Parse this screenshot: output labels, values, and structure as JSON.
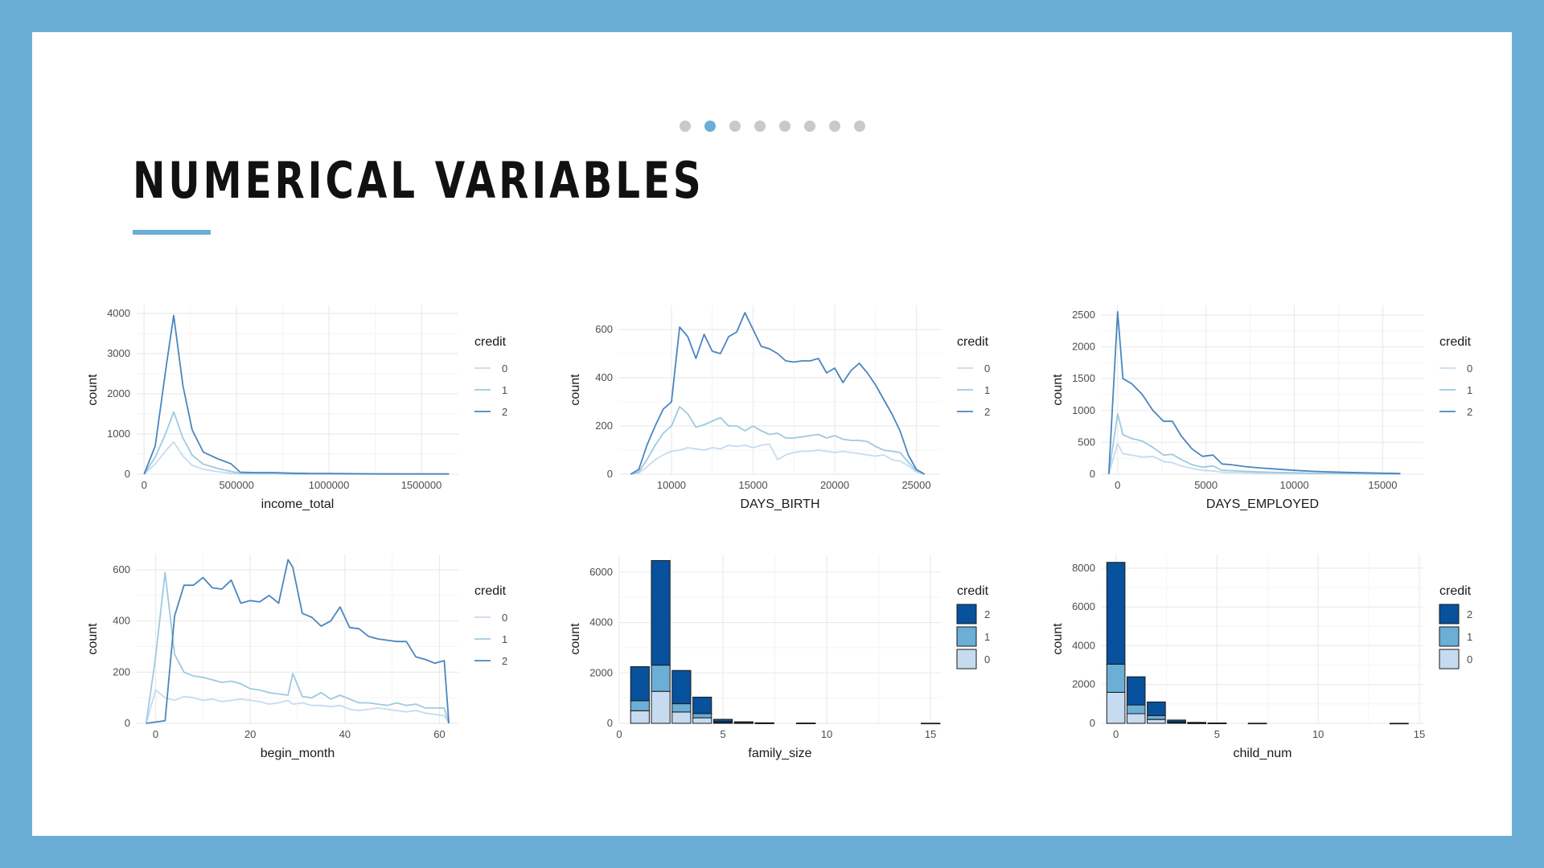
{
  "title": "NUMERICAL VARIABLES",
  "nav_dots": {
    "count": 8,
    "active_index": 1
  },
  "colors": {
    "background": "#6aaed6",
    "panel": "#ffffff",
    "accent": "#6aaed6",
    "dot_inactive": "#c9c9c9",
    "dot_active": "#6aaed6",
    "credit_0": "#c6dbef",
    "credit_1": "#6baed6",
    "credit_2": "#08519c",
    "line_0": "#c6dbef",
    "line_1": "#9ecae1",
    "line_2": "#4a86c0",
    "grid": "#ebebeb"
  },
  "chart_data": [
    {
      "type": "line",
      "xlabel": "income_total",
      "ylabel": "count",
      "xlim": [
        -40000,
        1700000
      ],
      "ylim": [
        0,
        4200
      ],
      "xticks": [
        0,
        500000,
        1000000,
        1500000
      ],
      "xtick_labels": [
        "0",
        "500000",
        "1000000",
        "1500000"
      ],
      "yticks": [
        0,
        1000,
        2000,
        3000,
        4000
      ],
      "ytick_labels": [
        "0",
        "1000",
        "2000",
        "3000",
        "4000"
      ],
      "grid": true,
      "legend": {
        "title": "credit",
        "position": "right",
        "entries": [
          "0",
          "1",
          "2"
        ]
      },
      "x": [
        0,
        60000,
        120000,
        160000,
        210000,
        260000,
        320000,
        400000,
        470000,
        520000,
        600000,
        700000,
        800000,
        900000,
        1000000,
        1200000,
        1400000,
        1650000
      ],
      "series": [
        {
          "name": "0",
          "values": [
            0,
            250,
            600,
            800,
            450,
            220,
            120,
            60,
            25,
            10,
            8,
            8,
            5,
            3,
            3,
            2,
            2,
            2
          ]
        },
        {
          "name": "1",
          "values": [
            0,
            420,
            1050,
            1550,
            900,
            470,
            250,
            140,
            70,
            25,
            20,
            20,
            12,
            8,
            8,
            5,
            5,
            5
          ]
        },
        {
          "name": "2",
          "values": [
            0,
            700,
            2700,
            3950,
            2200,
            1100,
            550,
            380,
            260,
            50,
            40,
            40,
            25,
            18,
            18,
            10,
            8,
            8
          ]
        }
      ]
    },
    {
      "type": "line",
      "xlabel": "DAYS_BIRTH",
      "ylabel": "count",
      "xlim": [
        6800,
        26500
      ],
      "ylim": [
        0,
        700
      ],
      "xticks": [
        10000,
        15000,
        20000,
        25000
      ],
      "xtick_labels": [
        "10000",
        "15000",
        "20000",
        "25000"
      ],
      "yticks": [
        0,
        200,
        400,
        600
      ],
      "ytick_labels": [
        "0",
        "200",
        "400",
        "600"
      ],
      "grid": true,
      "legend": {
        "title": "credit",
        "position": "right",
        "entries": [
          "0",
          "1",
          "2"
        ]
      },
      "x": [
        7500,
        8000,
        8500,
        9000,
        9500,
        10000,
        10500,
        11000,
        11500,
        12000,
        12500,
        13000,
        13500,
        14000,
        14500,
        15000,
        15500,
        16000,
        16500,
        17000,
        17500,
        18000,
        18500,
        19000,
        19500,
        20000,
        20500,
        21000,
        21500,
        22000,
        22500,
        23000,
        23500,
        24000,
        24500,
        25000,
        25500
      ],
      "series": [
        {
          "name": "0",
          "values": [
            0,
            5,
            30,
            60,
            80,
            95,
            100,
            110,
            105,
            100,
            110,
            105,
            120,
            115,
            120,
            110,
            120,
            125,
            60,
            80,
            90,
            95,
            95,
            100,
            95,
            90,
            95,
            90,
            85,
            80,
            75,
            80,
            60,
            55,
            35,
            10,
            0
          ]
        },
        {
          "name": "1",
          "values": [
            0,
            10,
            60,
            120,
            170,
            200,
            280,
            250,
            195,
            205,
            220,
            235,
            200,
            200,
            180,
            200,
            180,
            165,
            170,
            150,
            150,
            155,
            160,
            165,
            150,
            160,
            145,
            140,
            140,
            135,
            115,
            100,
            95,
            90,
            50,
            15,
            0
          ]
        },
        {
          "name": "2",
          "values": [
            0,
            20,
            120,
            200,
            270,
            300,
            610,
            570,
            480,
            580,
            510,
            500,
            570,
            590,
            670,
            600,
            530,
            520,
            500,
            470,
            465,
            470,
            470,
            480,
            420,
            440,
            380,
            430,
            460,
            420,
            370,
            310,
            250,
            180,
            80,
            20,
            0
          ]
        }
      ]
    },
    {
      "type": "line",
      "xlabel": "DAYS_EMPLOYED",
      "ylabel": "count",
      "xlim": [
        -900,
        17300
      ],
      "ylim": [
        0,
        2650
      ],
      "xticks": [
        0,
        5000,
        10000,
        15000
      ],
      "xtick_labels": [
        "0",
        "5000",
        "10000",
        "15000"
      ],
      "yticks": [
        0,
        500,
        1000,
        1500,
        2000,
        2500
      ],
      "ytick_labels": [
        "0",
        "500",
        "1000",
        "1500",
        "2000",
        "2500"
      ],
      "grid": true,
      "legend": {
        "title": "credit",
        "position": "right",
        "entries": [
          "0",
          "1",
          "2"
        ]
      },
      "x": [
        -500,
        0,
        300,
        800,
        1400,
        2000,
        2600,
        3100,
        3600,
        4200,
        4800,
        5400,
        5900,
        6400,
        7200,
        8000,
        9000,
        10000,
        11000,
        12000,
        13000,
        14000,
        15000,
        16000
      ],
      "series": [
        {
          "name": "0",
          "values": [
            0,
            480,
            320,
            300,
            270,
            280,
            200,
            180,
            130,
            90,
            60,
            50,
            30,
            25,
            20,
            15,
            12,
            10,
            8,
            6,
            5,
            4,
            3,
            2
          ]
        },
        {
          "name": "1",
          "values": [
            0,
            950,
            620,
            560,
            520,
            420,
            300,
            310,
            230,
            150,
            110,
            130,
            60,
            55,
            45,
            35,
            28,
            22,
            15,
            12,
            10,
            8,
            6,
            5
          ]
        },
        {
          "name": "2",
          "values": [
            0,
            2550,
            1500,
            1420,
            1250,
            1000,
            830,
            830,
            600,
            400,
            280,
            300,
            160,
            150,
            120,
            100,
            80,
            60,
            45,
            35,
            28,
            22,
            15,
            10
          ]
        }
      ]
    },
    {
      "type": "line",
      "xlabel": "begin_month",
      "ylabel": "count",
      "xlim": [
        -4,
        64
      ],
      "ylim": [
        0,
        660
      ],
      "xticks": [
        0,
        20,
        40,
        60
      ],
      "xtick_labels": [
        "0",
        "20",
        "40",
        "60"
      ],
      "yticks": [
        0,
        200,
        400,
        600
      ],
      "ytick_labels": [
        "0",
        "200",
        "400",
        "600"
      ],
      "grid": true,
      "legend": {
        "title": "credit",
        "position": "right",
        "entries": [
          "0",
          "1",
          "2"
        ]
      },
      "x": [
        -2,
        0,
        2,
        4,
        6,
        8,
        10,
        12,
        14,
        16,
        18,
        20,
        22,
        24,
        26,
        28,
        29,
        31,
        33,
        35,
        37,
        39,
        41,
        43,
        45,
        47,
        49,
        51,
        53,
        55,
        57,
        59,
        61,
        62
      ],
      "series": [
        {
          "name": "0",
          "values": [
            0,
            130,
            100,
            90,
            105,
            100,
            90,
            95,
            85,
            90,
            95,
            90,
            85,
            75,
            80,
            90,
            75,
            80,
            70,
            70,
            65,
            70,
            55,
            50,
            55,
            60,
            55,
            50,
            45,
            50,
            40,
            35,
            30,
            0
          ]
        },
        {
          "name": "1",
          "values": [
            0,
            260,
            590,
            270,
            200,
            185,
            180,
            170,
            160,
            165,
            155,
            135,
            130,
            120,
            115,
            110,
            195,
            105,
            100,
            120,
            95,
            110,
            95,
            80,
            80,
            75,
            70,
            80,
            70,
            75,
            60,
            60,
            60,
            0
          ]
        },
        {
          "name": "2",
          "values": [
            0,
            5,
            10,
            420,
            540,
            540,
            570,
            530,
            525,
            560,
            470,
            480,
            475,
            500,
            470,
            640,
            610,
            430,
            415,
            380,
            400,
            455,
            375,
            370,
            340,
            330,
            325,
            320,
            320,
            260,
            250,
            235,
            245,
            0
          ]
        }
      ]
    },
    {
      "type": "bar",
      "stacked": true,
      "xlabel": "family_size",
      "ylabel": "count",
      "xlim": [
        0,
        15.5
      ],
      "ylim": [
        0,
        6700
      ],
      "xticks": [
        0,
        5,
        10,
        15
      ],
      "xtick_labels": [
        "0",
        "5",
        "10",
        "15"
      ],
      "yticks": [
        0,
        2000,
        4000,
        6000
      ],
      "ytick_labels": [
        "0",
        "2000",
        "4000",
        "6000"
      ],
      "grid": true,
      "legend": {
        "title": "credit",
        "position": "right",
        "entries": [
          "2",
          "1",
          "0"
        ]
      },
      "x": [
        1,
        2,
        3,
        4,
        5,
        6,
        7,
        9,
        15
      ],
      "series": [
        {
          "name": "0",
          "values": [
            500,
            1270,
            450,
            220,
            35,
            15,
            5,
            3,
            1
          ]
        },
        {
          "name": "1",
          "values": [
            400,
            1040,
            330,
            170,
            30,
            10,
            4,
            2,
            1
          ]
        },
        {
          "name": "2",
          "values": [
            1350,
            4150,
            1320,
            650,
            95,
            35,
            12,
            5,
            2
          ]
        }
      ]
    },
    {
      "type": "bar",
      "stacked": true,
      "xlabel": "child_num",
      "ylabel": "count",
      "xlim": [
        -0.7,
        15.2
      ],
      "ylim": [
        0,
        8700
      ],
      "xticks": [
        0,
        5,
        10,
        15
      ],
      "xtick_labels": [
        "0",
        "5",
        "10",
        "15"
      ],
      "yticks": [
        0,
        2000,
        4000,
        6000,
        8000
      ],
      "ytick_labels": [
        "0",
        "2000",
        "4000",
        "6000",
        "8000"
      ],
      "grid": true,
      "legend": {
        "title": "credit",
        "position": "right",
        "entries": [
          "2",
          "1",
          "0"
        ]
      },
      "x": [
        0,
        1,
        2,
        3,
        4,
        5,
        7,
        14
      ],
      "series": [
        {
          "name": "0",
          "values": [
            1600,
            500,
            200,
            40,
            10,
            4,
            2,
            1
          ]
        },
        {
          "name": "1",
          "values": [
            1450,
            450,
            200,
            30,
            8,
            3,
            1,
            1
          ]
        },
        {
          "name": "2",
          "values": [
            5250,
            1450,
            700,
            100,
            30,
            10,
            3,
            2
          ]
        }
      ]
    }
  ]
}
